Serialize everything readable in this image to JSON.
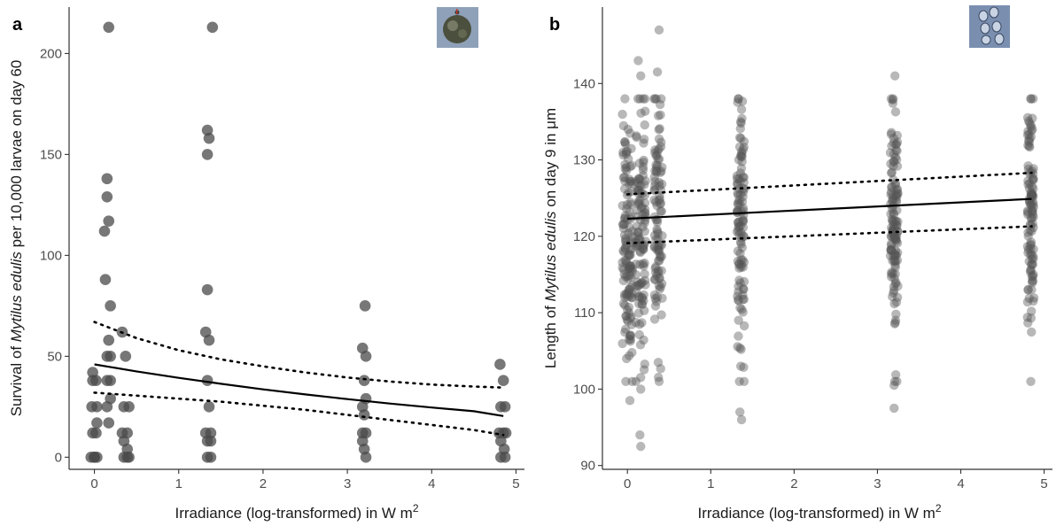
{
  "chart_data": [
    {
      "panel_label": "a",
      "type": "scatter",
      "xlabel_parts": {
        "pre": "Irradiance (log-transformed) in W m",
        "sup": "2"
      },
      "ylabel_parts": {
        "pre": "Survival of ",
        "italic": "Mytilus edulis",
        "post": " per 10,000 larvae on day 60"
      },
      "xlim": [
        -0.3,
        5.1
      ],
      "ylim": [
        -6,
        223
      ],
      "xticks": [
        0,
        1,
        2,
        3,
        4,
        5
      ],
      "yticks": [
        0,
        50,
        100,
        150,
        200
      ],
      "grid": false,
      "point_color": "#4a4a4a",
      "point_opacity": 0.75,
      "points": [
        [
          -0.04,
          0
        ],
        [
          0.0,
          0
        ],
        [
          0.03,
          0
        ],
        [
          -0.02,
          12
        ],
        [
          0.02,
          12
        ],
        [
          -0.03,
          25
        ],
        [
          0.03,
          25
        ],
        [
          -0.02,
          38
        ],
        [
          0.02,
          38
        ],
        [
          -0.02,
          42
        ],
        [
          0.03,
          17
        ],
        [
          0.0,
          0
        ],
        [
          0.12,
          112
        ],
        [
          0.15,
          138
        ],
        [
          0.15,
          129
        ],
        [
          0.17,
          117
        ],
        [
          0.13,
          88
        ],
        [
          0.19,
          75
        ],
        [
          0.17,
          58
        ],
        [
          0.15,
          50
        ],
        [
          0.19,
          50
        ],
        [
          0.15,
          38
        ],
        [
          0.19,
          38
        ],
        [
          0.15,
          25
        ],
        [
          0.19,
          29
        ],
        [
          0.17,
          17
        ],
        [
          0.17,
          213
        ],
        [
          0.33,
          62
        ],
        [
          0.37,
          50
        ],
        [
          0.35,
          25
        ],
        [
          0.41,
          25
        ],
        [
          0.33,
          12
        ],
        [
          0.39,
          12
        ],
        [
          0.35,
          8
        ],
        [
          0.39,
          4
        ],
        [
          0.35,
          0
        ],
        [
          0.39,
          0
        ],
        [
          0.41,
          0
        ],
        [
          1.34,
          162
        ],
        [
          1.36,
          158
        ],
        [
          1.34,
          150
        ],
        [
          1.34,
          83
        ],
        [
          1.32,
          62
        ],
        [
          1.36,
          58
        ],
        [
          1.34,
          38
        ],
        [
          1.36,
          25
        ],
        [
          1.32,
          12
        ],
        [
          1.38,
          12
        ],
        [
          1.34,
          8
        ],
        [
          1.38,
          8
        ],
        [
          1.34,
          0
        ],
        [
          1.38,
          0
        ],
        [
          1.4,
          213
        ],
        [
          3.21,
          75
        ],
        [
          3.18,
          54
        ],
        [
          3.22,
          50
        ],
        [
          3.2,
          38
        ],
        [
          3.18,
          25
        ],
        [
          3.22,
          29
        ],
        [
          3.2,
          21
        ],
        [
          3.18,
          12
        ],
        [
          3.22,
          12
        ],
        [
          3.2,
          4
        ],
        [
          3.18,
          8
        ],
        [
          3.22,
          0
        ],
        [
          4.81,
          46
        ],
        [
          4.85,
          38
        ],
        [
          4.82,
          25
        ],
        [
          4.87,
          25
        ],
        [
          4.8,
          12
        ],
        [
          4.85,
          12
        ],
        [
          4.88,
          12
        ],
        [
          4.82,
          8
        ],
        [
          4.86,
          4
        ],
        [
          4.82,
          0
        ],
        [
          4.87,
          0
        ]
      ],
      "fit": {
        "x": [
          0,
          0.5,
          1,
          1.5,
          2,
          2.5,
          3,
          3.5,
          4,
          4.5,
          4.85
        ],
        "y": [
          46,
          42.5,
          39.3,
          36.4,
          33.6,
          31.1,
          28.8,
          26.6,
          24.6,
          22.8,
          20.4
        ]
      },
      "ci_upper": {
        "x": [
          0,
          0.5,
          1,
          1.5,
          2,
          2.5,
          3,
          3.5,
          4,
          4.5,
          4.85
        ],
        "y": [
          67,
          59,
          53,
          48.5,
          45,
          42,
          39.5,
          37.5,
          36,
          35,
          34.5
        ]
      },
      "ci_lower": {
        "x": [
          0,
          0.5,
          1,
          1.5,
          2,
          2.5,
          3,
          3.5,
          4,
          4.5,
          4.85
        ],
        "y": [
          32,
          30.5,
          29,
          27.5,
          25.5,
          23.5,
          21,
          18.5,
          16,
          13.5,
          11
        ]
      }
    },
    {
      "panel_label": "b",
      "type": "scatter",
      "xlabel_parts": {
        "pre": "Irradiance (log-transformed) in W m",
        "sup": "2"
      },
      "ylabel_parts": {
        "pre": "Length of ",
        "italic": "Mytilus edulis",
        "post": " on day 9 in μm"
      },
      "xlim": [
        -0.3,
        5.1
      ],
      "ylim": [
        89.5,
        150
      ],
      "xticks": [
        0,
        1,
        2,
        3,
        4,
        5
      ],
      "yticks": [
        90,
        100,
        110,
        120,
        130,
        140
      ],
      "grid": false,
      "point_color": "#555555",
      "point_opacity": 0.42,
      "extremes": [
        [
          -0.03,
          138
        ],
        [
          0.03,
          98.5
        ],
        [
          -0.01,
          104
        ],
        [
          0.16,
          92.5
        ],
        [
          0.15,
          94
        ],
        [
          0.13,
          143
        ],
        [
          0.16,
          141
        ],
        [
          0.16,
          100
        ],
        [
          0.38,
          147
        ],
        [
          0.36,
          141.5
        ],
        [
          0.37,
          103.5
        ],
        [
          1.36,
          135
        ],
        [
          1.37,
          96
        ],
        [
          1.35,
          97
        ],
        [
          1.36,
          103
        ],
        [
          3.21,
          141
        ],
        [
          3.2,
          97.5
        ],
        [
          3.2,
          100.5
        ],
        [
          4.84,
          138
        ],
        [
          4.84,
          101
        ]
      ],
      "groups": [
        {
          "x": 0,
          "width": 0.12,
          "mean": 119,
          "sd": 8,
          "n": 130
        },
        {
          "x": 0.16,
          "width": 0.12,
          "mean": 121,
          "sd": 8,
          "n": 110
        },
        {
          "x": 0.37,
          "width": 0.1,
          "mean": 122,
          "sd": 8,
          "n": 100
        },
        {
          "x": 1.36,
          "width": 0.09,
          "mean": 120,
          "sd": 8,
          "n": 110
        },
        {
          "x": 3.2,
          "width": 0.09,
          "mean": 121,
          "sd": 8,
          "n": 130
        },
        {
          "x": 4.84,
          "width": 0.08,
          "mean": 123,
          "sd": 7.5,
          "n": 110
        }
      ],
      "fit": {
        "x": [
          0,
          4.85
        ],
        "y": [
          122.3,
          124.9
        ]
      },
      "ci_upper": {
        "x": [
          0,
          4.85
        ],
        "y": [
          125.5,
          128.3
        ]
      },
      "ci_lower": {
        "x": [
          0,
          4.85
        ],
        "y": [
          119.1,
          121.3
        ]
      }
    }
  ]
}
